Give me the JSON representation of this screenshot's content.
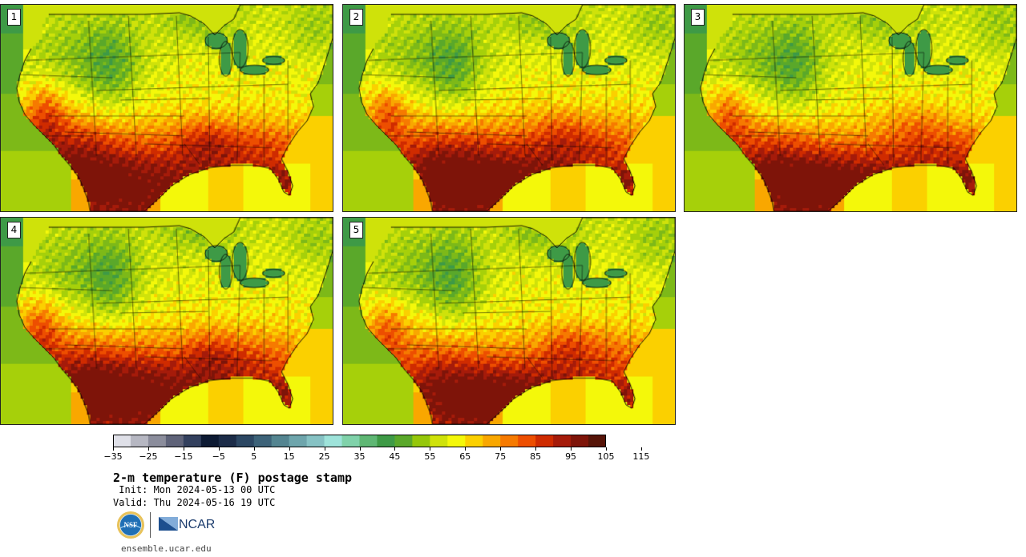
{
  "panels": [
    {
      "label": "1",
      "variant": 0
    },
    {
      "label": "2",
      "variant": 1
    },
    {
      "label": "3",
      "variant": 2
    },
    {
      "label": "4",
      "variant": 3
    },
    {
      "label": "5",
      "variant": 4
    }
  ],
  "colorbar": {
    "colors": [
      "#dfe0e8",
      "#b6b7c2",
      "#8b8d9c",
      "#5f6379",
      "#33405e",
      "#0d1a33",
      "#1c2c48",
      "#2c4763",
      "#3d6379",
      "#548591",
      "#6ea5ac",
      "#86c2c4",
      "#9ee3da",
      "#80d2aa",
      "#5fb774",
      "#3e9a46",
      "#5aa82a",
      "#95c70a",
      "#cfe20a",
      "#f4f80a",
      "#fbd000",
      "#f9a700",
      "#f67a00",
      "#ed4e00",
      "#cf2b00",
      "#a51b0a",
      "#7e1409",
      "#561408"
    ],
    "tick_labels": [
      "-35",
      "-25",
      "-15",
      "-5",
      "5",
      "15",
      "25",
      "35",
      "45",
      "55",
      "65",
      "75",
      "85",
      "95",
      "105",
      "115"
    ]
  },
  "title": "2-m temperature (F) postage stamp",
  "init_text": " Init: Mon 2024-05-13 00 UTC",
  "valid_text": "Valid: Thu 2024-05-16 19 UTC",
  "logos": {
    "nsf": "NSF",
    "ncar": "NCAR"
  },
  "website": "ensemble.ucar.edu"
}
